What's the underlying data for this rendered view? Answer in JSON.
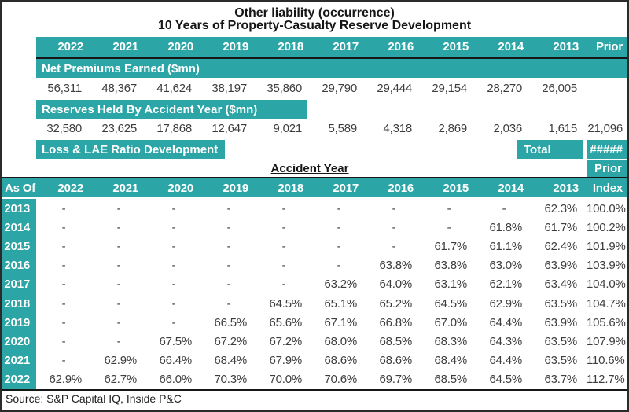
{
  "titles": {
    "line1": "Other liability (occurrence)",
    "line2": "10 Years of Property-Casualty Reserve Development"
  },
  "colors": {
    "teal": "#2ca5a6"
  },
  "top": {
    "years": [
      "2022",
      "2021",
      "2020",
      "2019",
      "2018",
      "2017",
      "2016",
      "2015",
      "2014",
      "2013"
    ],
    "prior_label": "Prior",
    "sections": [
      {
        "label": "Net Premiums Earned ($mn)",
        "values": [
          "56,311",
          "48,367",
          "41,624",
          "38,197",
          "35,860",
          "29,790",
          "29,444",
          "29,154",
          "28,270",
          "26,005"
        ],
        "prior": ""
      },
      {
        "label": "Reserves Held By Accident Year ($mn)",
        "values": [
          "32,580",
          "23,625",
          "17,868",
          "12,647",
          "9,021",
          "5,589",
          "4,318",
          "2,869",
          "2,036",
          "1,615"
        ],
        "prior": "21,096"
      }
    ],
    "loss_dev": {
      "label": "Loss & LAE Ratio Development",
      "total_label": "Total",
      "total_value": "#####",
      "accident_year_label": "Accident Year",
      "prior_label": "Prior"
    }
  },
  "matrix": {
    "corner_label": "As Of",
    "years": [
      "2022",
      "2021",
      "2020",
      "2019",
      "2018",
      "2017",
      "2016",
      "2015",
      "2014",
      "2013"
    ],
    "index_label": "Index",
    "rows": [
      {
        "as_of": "2013",
        "values": [
          "-",
          "-",
          "-",
          "-",
          "-",
          "-",
          "-",
          "-",
          "-",
          "62.3%"
        ],
        "index": "100.0%"
      },
      {
        "as_of": "2014",
        "values": [
          "-",
          "-",
          "-",
          "-",
          "-",
          "-",
          "-",
          "-",
          "61.8%",
          "61.7%"
        ],
        "index": "100.2%"
      },
      {
        "as_of": "2015",
        "values": [
          "-",
          "-",
          "-",
          "-",
          "-",
          "-",
          "-",
          "61.7%",
          "61.1%",
          "62.4%"
        ],
        "index": "101.9%"
      },
      {
        "as_of": "2016",
        "values": [
          "-",
          "-",
          "-",
          "-",
          "-",
          "-",
          "63.8%",
          "63.8%",
          "63.0%",
          "63.9%"
        ],
        "index": "103.9%"
      },
      {
        "as_of": "2017",
        "values": [
          "-",
          "-",
          "-",
          "-",
          "-",
          "63.2%",
          "64.0%",
          "63.1%",
          "62.1%",
          "63.4%"
        ],
        "index": "104.0%"
      },
      {
        "as_of": "2018",
        "values": [
          "-",
          "-",
          "-",
          "-",
          "64.5%",
          "65.1%",
          "65.2%",
          "64.5%",
          "62.9%",
          "63.5%"
        ],
        "index": "104.7%"
      },
      {
        "as_of": "2019",
        "values": [
          "-",
          "-",
          "-",
          "66.5%",
          "65.6%",
          "67.1%",
          "66.8%",
          "67.0%",
          "64.4%",
          "63.9%"
        ],
        "index": "105.6%"
      },
      {
        "as_of": "2020",
        "values": [
          "-",
          "-",
          "67.5%",
          "67.2%",
          "67.2%",
          "68.0%",
          "68.5%",
          "68.3%",
          "64.3%",
          "63.5%"
        ],
        "index": "107.9%"
      },
      {
        "as_of": "2021",
        "values": [
          "-",
          "62.9%",
          "66.4%",
          "68.4%",
          "67.9%",
          "68.6%",
          "68.6%",
          "68.4%",
          "64.4%",
          "63.5%"
        ],
        "index": "110.6%"
      },
      {
        "as_of": "2022",
        "values": [
          "62.9%",
          "62.7%",
          "66.0%",
          "70.3%",
          "70.0%",
          "70.6%",
          "69.7%",
          "68.5%",
          "64.5%",
          "63.7%"
        ],
        "index": "112.7%"
      }
    ]
  },
  "footer": {
    "source": "Source: S&P Capital IQ, Inside P&C"
  }
}
